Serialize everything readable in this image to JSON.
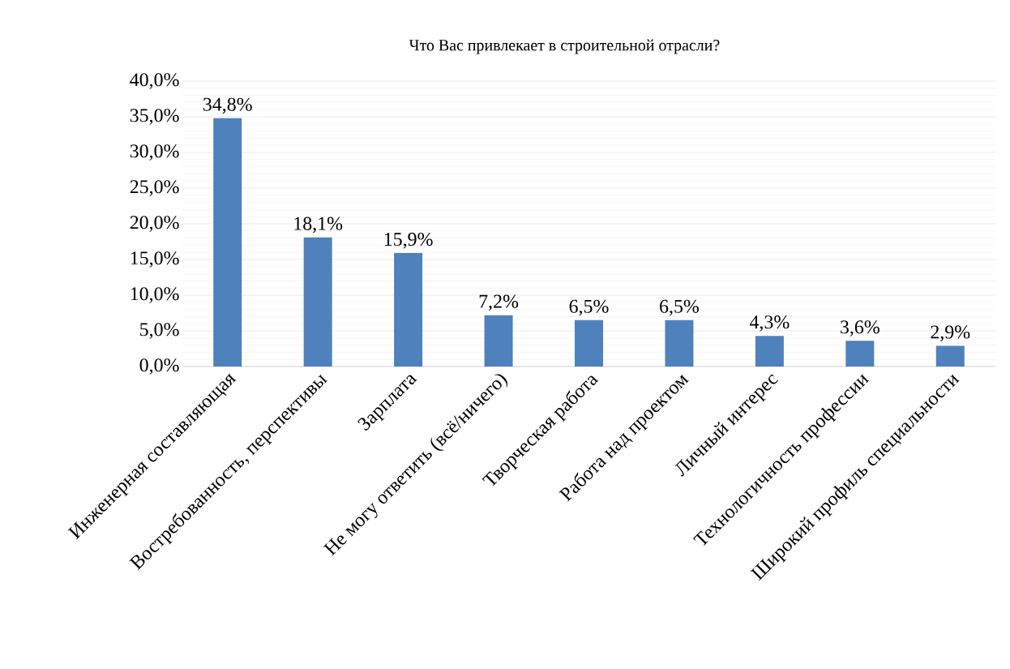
{
  "chart_data": {
    "type": "bar",
    "title": "Что Вас привлекает в строительной отрасли?",
    "categories": [
      "Инженерная составляющая",
      "Востребованность, перспективы",
      "Зарплата",
      "Не могу ответить (всё/ничего)",
      "Творческая работа",
      "Работа над проектом",
      "Личный интерес",
      "Технологичность профессии",
      "Широкий профиль специальности"
    ],
    "values": [
      34.8,
      18.1,
      15.9,
      7.2,
      6.5,
      6.5,
      4.3,
      3.6,
      2.9
    ],
    "value_labels": [
      "34,8%",
      "18,1%",
      "15,9%",
      "7,2%",
      "6,5%",
      "6,5%",
      "4,3%",
      "3,6%",
      "2,9%"
    ],
    "color": "#4f81bd",
    "ylim": [
      0,
      40
    ],
    "yticks": [
      {
        "value": 0,
        "label": "0,0%"
      },
      {
        "value": 5,
        "label": "5,0%"
      },
      {
        "value": 10,
        "label": "10,0%"
      },
      {
        "value": 15,
        "label": "15,0%"
      },
      {
        "value": 20,
        "label": "20,0%"
      },
      {
        "value": 25,
        "label": "25,0%"
      },
      {
        "value": 30,
        "label": "30,0%"
      },
      {
        "value": 35,
        "label": "35,0%"
      },
      {
        "value": 40,
        "label": "40,0%"
      }
    ],
    "grid": "y"
  }
}
